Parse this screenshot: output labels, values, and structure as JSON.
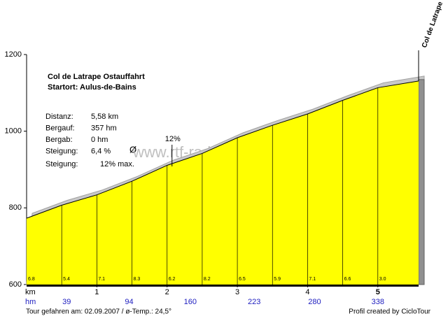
{
  "chart_data": {
    "type": "area",
    "title": "Col de Latrape  Ostauffahrt",
    "subtitle": "Startort: Aulus-de-Bains",
    "summit": "Col de Latrape",
    "x": [
      0,
      0.5,
      1,
      1.5,
      2,
      2.5,
      3,
      3.5,
      4,
      4.5,
      5,
      5.58
    ],
    "values": [
      773,
      807,
      834,
      869.5,
      911,
      942,
      983,
      1015.5,
      1045,
      1080.5,
      1113.5,
      1131
    ],
    "gradients": [
      6.8,
      5.4,
      7.1,
      8.3,
      6.2,
      8.2,
      6.5,
      5.9,
      7.1,
      6.6,
      3.0
    ],
    "gradient_labels": [
      "6.8",
      "5.4",
      "7.1",
      "8.3",
      "6.2",
      "8.2",
      "6.5",
      "5.9",
      "7.1",
      "6.6",
      "3.0"
    ],
    "color": "#ffff00",
    "ylim": [
      600,
      1200
    ],
    "yticks": [
      600,
      800,
      1000,
      1200
    ],
    "xlim": [
      0,
      5.58
    ],
    "xticks": [
      1,
      2,
      3,
      4,
      5
    ],
    "x_label": "km",
    "climb_label": "hm",
    "climb": {
      "x": [
        0.57,
        1.46,
        2.33,
        3.24,
        4.1,
        5.0
      ],
      "values": [
        39,
        94,
        160,
        223,
        280,
        338
      ]
    },
    "max_marker": {
      "x": 2.07,
      "label": "12%"
    },
    "info": [
      {
        "label": "Distanz:",
        "value": "5,58 km"
      },
      {
        "label": "Bergauf:",
        "value": "357 hm"
      },
      {
        "label": "Bergab:",
        "value": "0 hm"
      },
      {
        "label": "Steigung:",
        "value": "6,4 %"
      },
      {
        "label": "Steigung:",
        "value": "12% max."
      }
    ],
    "avg_symbol": "Ø",
    "watermark": "www.rtf-radmarathon.de",
    "footer_left": "Tour gefahren am: 02.09.2007  /  ø-Temp.: 24,5°",
    "footer_right": "Profil created by CicloTour"
  }
}
